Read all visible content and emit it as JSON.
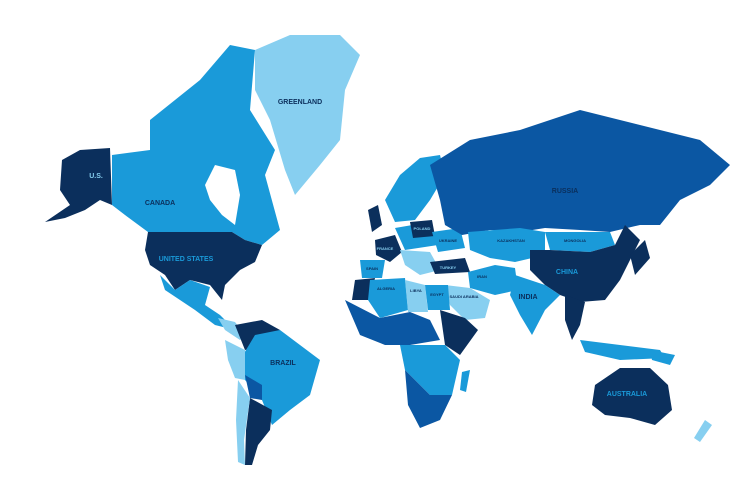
{
  "colors": {
    "navy": "#0b2f5c",
    "royal": "#0b57a3",
    "medium": "#1a9ad9",
    "light": "#87cff0",
    "background": "#ffffff"
  },
  "labels": {
    "greenland": "GREENLAND",
    "us_alaska": "U.S.",
    "canada": "CANADA",
    "united_states": "UNITED STATES",
    "brazil": "BRAZIL",
    "russia": "RUSSIA",
    "kazakhstan": "KAZAKHSTAN",
    "mongolia": "MONGOLIA",
    "china": "CHINA",
    "india": "INDIA",
    "australia": "AUSTRALIA",
    "algeria": "ALGERIA",
    "libya": "LIBYA",
    "egypt": "EGYPT",
    "saudi_arabia": "SAUDI ARABIA",
    "iran": "IRAN",
    "france": "FRANCE",
    "spain": "SPAIN",
    "poland": "POLAND",
    "ukraine": "UKRAINE",
    "turkey": "TURKEY"
  }
}
